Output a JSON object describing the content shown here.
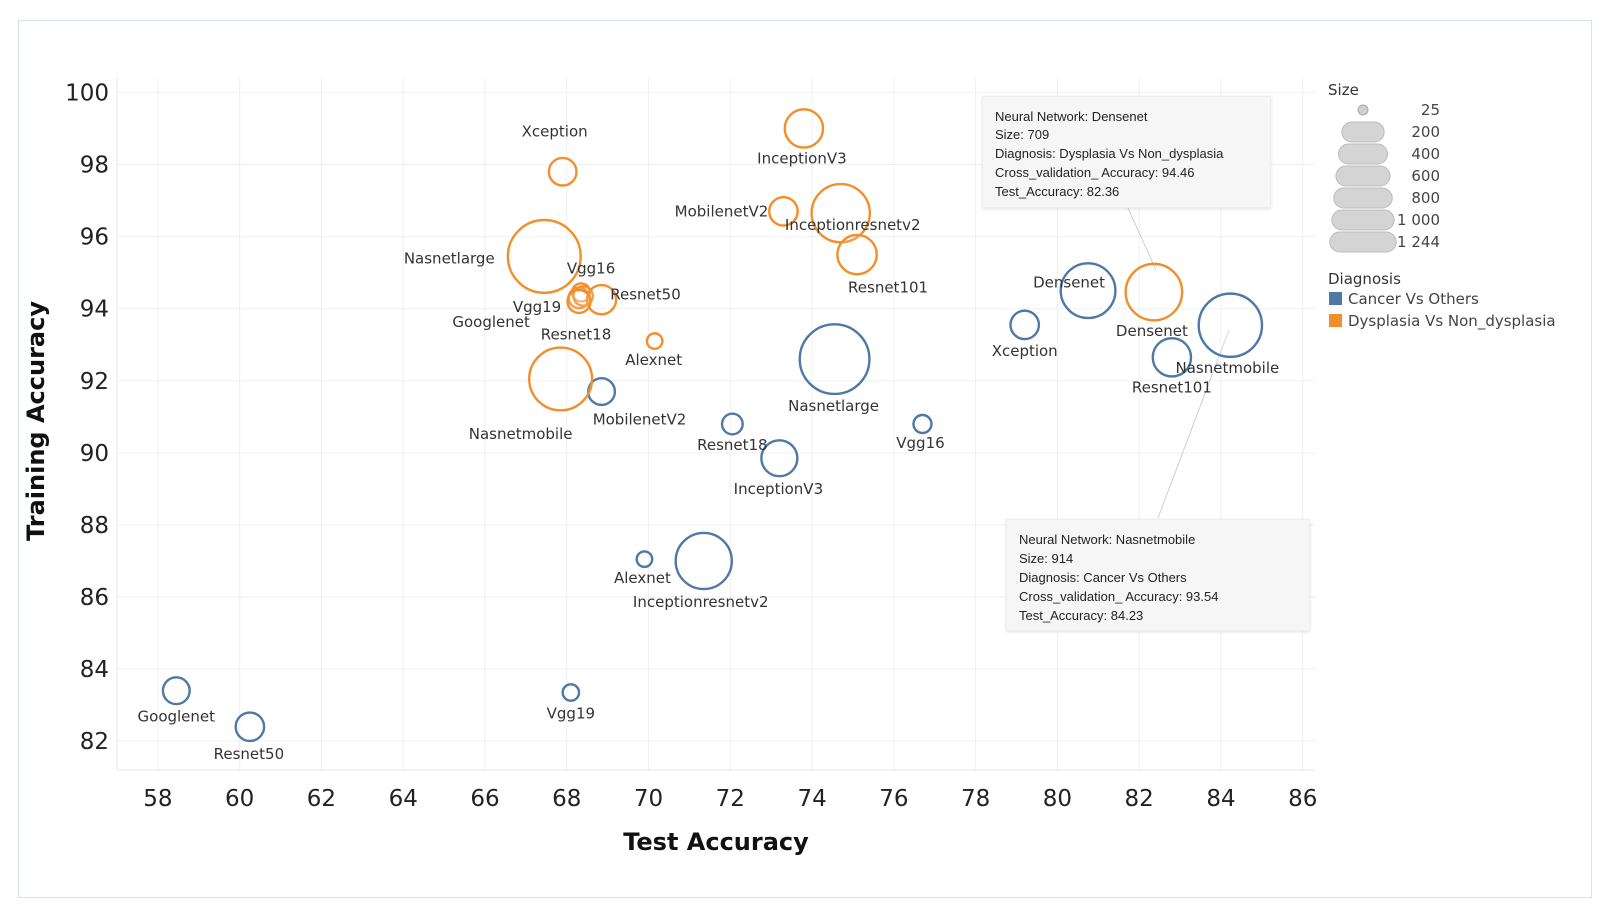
{
  "chart_data": {
    "type": "scatter",
    "xlabel": "Test Accuracy",
    "ylabel": "Training Accuracy",
    "xlim": [
      57,
      86.3
    ],
    "ylim": [
      81.2,
      100.4
    ],
    "xticks": [
      58,
      60,
      62,
      64,
      66,
      68,
      70,
      72,
      74,
      76,
      78,
      80,
      82,
      84,
      86
    ],
    "yticks": [
      82,
      84,
      86,
      88,
      90,
      92,
      94,
      96,
      98,
      100
    ],
    "grid": true,
    "size_legend": {
      "title": "Size",
      "entries": [
        "25",
        "200",
        "400",
        "600",
        "800",
        "1 000",
        "1 244"
      ],
      "values": [
        25,
        200,
        400,
        600,
        800,
        1000,
        1244
      ]
    },
    "color_legend": {
      "title": "Diagnosis",
      "entries": [
        {
          "name": "Cancer Vs Others",
          "color": "#4e79a7"
        },
        {
          "name": "Dysplasia Vs Non_dysplasia",
          "color": "#f28e2b"
        }
      ]
    },
    "series": [
      {
        "name": "Cancer Vs Others",
        "color": "#4e79a7",
        "points": [
          {
            "label": "Googlenet",
            "x": 58.45,
            "y": 83.4,
            "size": 120
          },
          {
            "label": "Resnet50",
            "x": 60.25,
            "y": 82.4,
            "size": 140
          },
          {
            "label": "Vgg19",
            "x": 68.1,
            "y": 83.35,
            "size": 30
          },
          {
            "label": "Alexnet",
            "x": 69.9,
            "y": 87.05,
            "size": 25
          },
          {
            "label": "Inceptionresnetv2",
            "x": 71.35,
            "y": 87.0,
            "size": 700
          },
          {
            "label": "MobilenetV2",
            "x": 68.85,
            "y": 91.7,
            "size": 120
          },
          {
            "label": "Resnet18",
            "x": 72.05,
            "y": 90.8,
            "size": 60
          },
          {
            "label": "InceptionV3",
            "x": 73.2,
            "y": 89.85,
            "size": 250
          },
          {
            "label": "Nasnetlarge",
            "x": 74.55,
            "y": 92.6,
            "size": 1130
          },
          {
            "label": "Vgg16",
            "x": 76.7,
            "y": 90.8,
            "size": 40
          },
          {
            "label": "Xception",
            "x": 79.2,
            "y": 93.55,
            "size": 140
          },
          {
            "label": "Densenet",
            "x": 80.75,
            "y": 94.5,
            "size": 660
          },
          {
            "label": "Resnet101",
            "x": 82.8,
            "y": 92.65,
            "size": 290
          },
          {
            "label": "Nasnetmobile",
            "x": 84.23,
            "y": 93.54,
            "size": 914
          }
        ]
      },
      {
        "name": "Dysplasia Vs Non_dysplasia",
        "color": "#f28e2b",
        "points": [
          {
            "label": "Xception",
            "x": 67.9,
            "y": 97.8,
            "size": 130
          },
          {
            "label": "Nasnetlarge",
            "x": 67.45,
            "y": 95.45,
            "size": 1244
          },
          {
            "label": "Vgg16",
            "x": 68.35,
            "y": 94.45,
            "size": 40
          },
          {
            "label": "Vgg19",
            "x": 68.3,
            "y": 94.3,
            "size": 60
          },
          {
            "label": "Googlenet",
            "x": 68.4,
            "y": 94.35,
            "size": 50
          },
          {
            "label": "Resnet50",
            "x": 68.85,
            "y": 94.25,
            "size": 150
          },
          {
            "label": "Resnet18",
            "x": 68.3,
            "y": 94.2,
            "size": 80
          },
          {
            "label": "Alexnet",
            "x": 70.15,
            "y": 93.1,
            "size": 25
          },
          {
            "label": "Nasnetmobile",
            "x": 67.85,
            "y": 92.05,
            "size": 900
          },
          {
            "label": "InceptionV3",
            "x": 73.8,
            "y": 99.0,
            "size": 290
          },
          {
            "label": "MobilenetV2",
            "x": 73.3,
            "y": 96.7,
            "size": 140
          },
          {
            "label": "Inceptionresnetv2",
            "x": 74.7,
            "y": 96.65,
            "size": 760
          },
          {
            "label": "Resnet101",
            "x": 75.1,
            "y": 95.5,
            "size": 310
          },
          {
            "label": "Densenet",
            "x": 82.36,
            "y": 94.46,
            "size": 709
          }
        ]
      }
    ]
  },
  "tooltips": [
    {
      "id": "densenet",
      "rows": [
        "Neural Network: Densenet",
        "Size: 709",
        "Diagnosis: Dysplasia Vs Non_dysplasia",
        "Cross_validation_ Accuracy: 94.46",
        "Test_Accuracy: 82.36"
      ]
    },
    {
      "id": "nasnetmobile",
      "rows": [
        "Neural Network: Nasnetmobile",
        "Size: 914",
        "Diagnosis: Cancer Vs Others",
        "Cross_validation_ Accuracy: 93.54",
        "Test_Accuracy: 84.23"
      ]
    }
  ]
}
